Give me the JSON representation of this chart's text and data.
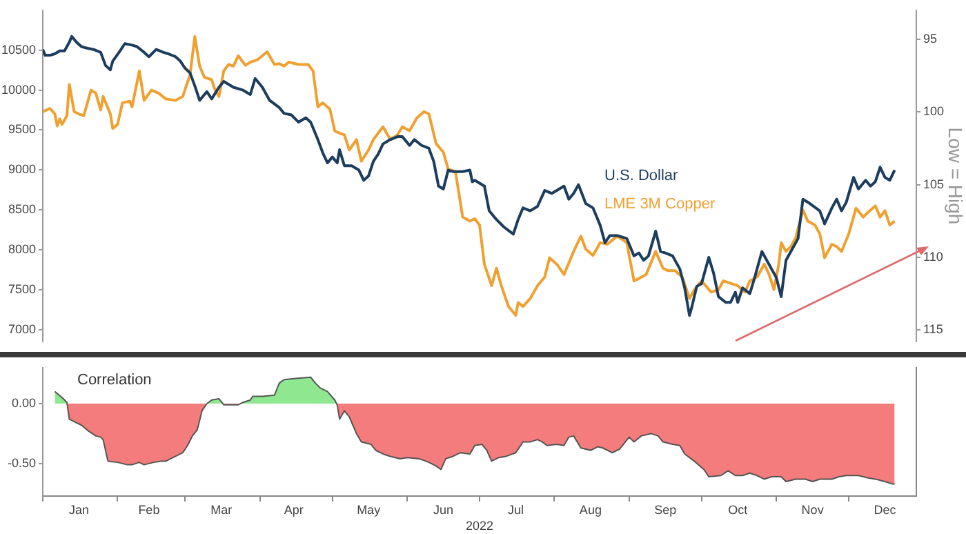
{
  "chart_data": [
    {
      "type": "line",
      "xlim": [
        "2022-01-01",
        "2022-12-29"
      ],
      "ylim": [
        6850,
        11000
      ],
      "yticks": [
        7000,
        7500,
        8000,
        8500,
        9000,
        9500,
        10000,
        10500
      ],
      "y2lim": [
        115.8,
        93
      ],
      "y2ticks": [
        95,
        100,
        105,
        110,
        115
      ],
      "y2label": "Low = High",
      "tick_labels": "y",
      "series": [
        {
          "name": "U.S. Dollar",
          "color": "#1c3d5e",
          "axis": "y2",
          "x": [
            "2022-01-01",
            "2022-01-02",
            "2022-01-04",
            "2022-01-06",
            "2022-01-08",
            "2022-01-10",
            "2022-01-12",
            "2022-01-13",
            "2022-01-15",
            "2022-01-17",
            "2022-01-19",
            "2022-01-22",
            "2022-01-25",
            "2022-01-27",
            "2022-01-29",
            "2022-01-30",
            "2022-02-02",
            "2022-02-04",
            "2022-02-07",
            "2022-02-09",
            "2022-02-12",
            "2022-02-14",
            "2022-02-17",
            "2022-02-20",
            "2022-02-22",
            "2022-02-25",
            "2022-02-27",
            "2022-03-01",
            "2022-03-03",
            "2022-03-05",
            "2022-03-07",
            "2022-03-10",
            "2022-03-12",
            "2022-03-15",
            "2022-03-17",
            "2022-03-21",
            "2022-03-25",
            "2022-03-28",
            "2022-03-30",
            "2022-04-02",
            "2022-04-05",
            "2022-04-09",
            "2022-04-11",
            "2022-04-14",
            "2022-04-17",
            "2022-04-20",
            "2022-04-22",
            "2022-04-25",
            "2022-04-27",
            "2022-04-29",
            "2022-05-01",
            "2022-05-03",
            "2022-05-04",
            "2022-05-06",
            "2022-05-09",
            "2022-05-12",
            "2022-05-14",
            "2022-05-16",
            "2022-05-18",
            "2022-05-20",
            "2022-05-22",
            "2022-05-25",
            "2022-05-28",
            "2022-05-30",
            "2022-06-02",
            "2022-06-04",
            "2022-06-07",
            "2022-06-10",
            "2022-06-12",
            "2022-06-14",
            "2022-06-16",
            "2022-06-18",
            "2022-06-20",
            "2022-06-24",
            "2022-06-27",
            "2022-06-28",
            "2022-06-29",
            "2022-07-03",
            "2022-07-05",
            "2022-07-08",
            "2022-07-11",
            "2022-07-15",
            "2022-07-17",
            "2022-07-19",
            "2022-07-22",
            "2022-07-25",
            "2022-07-28",
            "2022-07-31",
            "2022-08-05",
            "2022-08-07",
            "2022-08-09",
            "2022-08-11",
            "2022-08-14",
            "2022-08-17",
            "2022-08-20",
            "2022-08-22",
            "2022-08-24",
            "2022-08-27",
            "2022-08-31",
            "2022-09-03",
            "2022-09-05",
            "2022-09-07",
            "2022-09-09",
            "2022-09-12",
            "2022-09-14",
            "2022-09-16",
            "2022-09-19",
            "2022-09-22",
            "2022-09-24",
            "2022-09-26",
            "2022-09-27",
            "2022-09-29",
            "2022-10-01",
            "2022-10-04",
            "2022-10-06",
            "2022-10-08",
            "2022-10-11",
            "2022-10-13",
            "2022-10-15",
            "2022-10-16",
            "2022-10-18",
            "2022-10-21",
            "2022-10-23",
            "2022-10-26",
            "2022-10-29",
            "2022-11-01",
            "2022-11-03",
            "2022-11-05",
            "2022-11-08",
            "2022-11-10",
            "2022-11-12",
            "2022-11-14",
            "2022-11-19",
            "2022-11-21",
            "2022-11-24",
            "2022-11-26",
            "2022-11-28",
            "2022-11-30",
            "2022-12-03",
            "2022-12-05",
            "2022-12-08",
            "2022-12-10",
            "2022-12-12",
            "2022-12-14",
            "2022-12-16",
            "2022-12-18",
            "2022-12-20"
          ],
          "values": [
            95.7,
            96.1,
            96.1,
            96.0,
            95.8,
            95.8,
            95.2,
            94.8,
            95.2,
            95.5,
            95.6,
            95.7,
            95.9,
            96.8,
            97.1,
            96.5,
            95.8,
            95.3,
            95.4,
            95.5,
            95.9,
            96.2,
            95.7,
            95.9,
            96.0,
            96.2,
            96.5,
            97.0,
            97.3,
            98.2,
            99.2,
            98.6,
            99.1,
            98.3,
            97.9,
            98.3,
            98.5,
            98.8,
            97.7,
            98.3,
            99.2,
            99.7,
            100.1,
            100.2,
            100.7,
            100.4,
            100.7,
            101.9,
            102.8,
            103.5,
            103.1,
            103.5,
            102.6,
            103.7,
            103.7,
            104.0,
            104.7,
            104.4,
            103.4,
            102.9,
            102.2,
            101.9,
            101.7,
            101.7,
            102.3,
            101.9,
            102.3,
            102.5,
            103.4,
            105.1,
            105.3,
            104.0,
            104.1,
            104.1,
            104.0,
            104.8,
            104.7,
            105.1,
            106.8,
            107.4,
            107.9,
            108.4,
            107.4,
            106.6,
            106.8,
            106.5,
            105.4,
            105.6,
            105.1,
            106.0,
            105.6,
            105.0,
            106.3,
            106.6,
            107.8,
            109.0,
            108.5,
            108.5,
            108.7,
            109.9,
            109.7,
            110.2,
            109.9,
            108.2,
            109.6,
            109.7,
            109.9,
            110.8,
            112.1,
            114.0,
            113.4,
            112.0,
            111.8,
            110.0,
            111.1,
            112.7,
            113.1,
            113.1,
            112.4,
            113.1,
            112.1,
            112.5,
            111.4,
            109.6,
            110.5,
            111.4,
            112.7,
            110.2,
            109.3,
            108.7,
            106.0,
            106.2,
            106.8,
            107.7,
            106.6,
            106.0,
            106.8,
            106.2,
            104.5,
            105.3,
            104.7,
            105.1,
            104.8,
            103.8,
            104.5,
            104.7,
            104.0
          ]
        },
        {
          "name": "LME 3M Copper",
          "color": "#f0a030",
          "x": [
            "2022-01-01",
            "2022-01-04",
            "2022-01-06",
            "2022-01-07",
            "2022-01-08",
            "2022-01-09",
            "2022-01-11",
            "2022-01-12",
            "2022-01-14",
            "2022-01-16",
            "2022-01-18",
            "2022-01-21",
            "2022-01-23",
            "2022-01-25",
            "2022-01-26",
            "2022-01-29",
            "2022-01-30",
            "2022-02-01",
            "2022-02-03",
            "2022-02-06",
            "2022-02-07",
            "2022-02-10",
            "2022-02-12",
            "2022-02-15",
            "2022-02-18",
            "2022-02-21",
            "2022-02-25",
            "2022-02-28",
            "2022-03-03",
            "2022-03-05",
            "2022-03-07",
            "2022-03-09",
            "2022-03-12",
            "2022-03-13",
            "2022-03-15",
            "2022-03-17",
            "2022-03-19",
            "2022-03-21",
            "2022-03-23",
            "2022-03-26",
            "2022-03-28",
            "2022-03-31",
            "2022-04-04",
            "2022-04-07",
            "2022-04-09",
            "2022-04-11",
            "2022-04-13",
            "2022-04-17",
            "2022-04-21",
            "2022-04-23",
            "2022-04-25",
            "2022-04-27",
            "2022-04-30",
            "2022-05-02",
            "2022-05-04",
            "2022-05-06",
            "2022-05-08",
            "2022-05-11",
            "2022-05-13",
            "2022-05-16",
            "2022-05-18",
            "2022-05-20",
            "2022-05-22",
            "2022-05-25",
            "2022-05-28",
            "2022-05-30",
            "2022-06-02",
            "2022-06-05",
            "2022-06-08",
            "2022-06-10",
            "2022-06-13",
            "2022-06-16",
            "2022-06-18",
            "2022-06-21",
            "2022-06-24",
            "2022-06-27",
            "2022-06-29",
            "2022-07-01",
            "2022-07-03",
            "2022-07-06",
            "2022-07-08",
            "2022-07-10",
            "2022-07-13",
            "2022-07-16",
            "2022-07-17",
            "2022-07-19",
            "2022-07-22",
            "2022-07-25",
            "2022-07-28",
            "2022-07-30",
            "2022-08-02",
            "2022-08-05",
            "2022-08-09",
            "2022-08-12",
            "2022-08-14",
            "2022-08-17",
            "2022-08-20",
            "2022-08-23",
            "2022-08-27",
            "2022-08-31",
            "2022-09-03",
            "2022-09-05",
            "2022-09-08",
            "2022-09-12",
            "2022-09-15",
            "2022-09-17",
            "2022-09-20",
            "2022-09-23",
            "2022-09-26",
            "2022-09-28",
            "2022-10-01",
            "2022-10-05",
            "2022-10-08",
            "2022-10-10",
            "2022-10-13",
            "2022-10-16",
            "2022-10-19",
            "2022-10-21",
            "2022-10-24",
            "2022-10-27",
            "2022-10-29",
            "2022-10-31",
            "2022-11-02",
            "2022-11-03",
            "2022-11-05",
            "2022-11-07",
            "2022-11-09",
            "2022-11-12",
            "2022-11-14",
            "2022-11-17",
            "2022-11-19",
            "2022-11-21",
            "2022-11-24",
            "2022-11-26",
            "2022-11-28",
            "2022-12-01",
            "2022-12-04",
            "2022-12-07",
            "2022-12-09",
            "2022-12-12",
            "2022-12-14",
            "2022-12-16",
            "2022-12-18",
            "2022-12-20"
          ],
          "values": [
            9730,
            9770,
            9700,
            9550,
            9640,
            9570,
            9680,
            10070,
            9730,
            9700,
            9680,
            10000,
            9960,
            9750,
            9920,
            9700,
            9520,
            9570,
            9840,
            9860,
            9790,
            10240,
            9870,
            10000,
            9960,
            9890,
            9870,
            9920,
            10190,
            10670,
            10300,
            10160,
            10130,
            10030,
            9920,
            10240,
            10320,
            10300,
            10430,
            10310,
            10350,
            10380,
            10480,
            10320,
            10330,
            10300,
            10350,
            10320,
            10320,
            10240,
            9790,
            9840,
            9760,
            9490,
            9460,
            9440,
            9250,
            9380,
            9110,
            9250,
            9380,
            9460,
            9540,
            9380,
            9440,
            9540,
            9490,
            9650,
            9730,
            9700,
            9330,
            9220,
            9010,
            8980,
            8410,
            8360,
            8390,
            8310,
            7820,
            7550,
            7770,
            7550,
            7290,
            7180,
            7340,
            7290,
            7390,
            7550,
            7660,
            7900,
            7820,
            7690,
            7980,
            8170,
            8010,
            7930,
            8090,
            8070,
            8170,
            8090,
            7610,
            7640,
            7690,
            7980,
            7770,
            7740,
            7740,
            7660,
            7390,
            7500,
            7610,
            7470,
            7500,
            7610,
            7580,
            7550,
            7470,
            7610,
            7660,
            7820,
            7690,
            7500,
            7820,
            8090,
            7980,
            8040,
            8150,
            8500,
            8360,
            8310,
            8200,
            7900,
            8070,
            8040,
            7980,
            8200,
            8520,
            8410,
            8470,
            8550,
            8410,
            8490,
            8310,
            8360
          ]
        }
      ]
    },
    {
      "type": "area",
      "title": "Correlation",
      "xlabel": "2022",
      "color": "#f47c7c",
      "xlim": [
        "2022-01-01",
        "2022-12-29"
      ],
      "xticks": [
        {
          "value": "2022-01-01",
          "label": null
        },
        {
          "value": "2022-01-16",
          "label": "Jan"
        },
        {
          "value": "2022-02-01",
          "label": null
        },
        {
          "value": "2022-02-14",
          "label": "Feb"
        },
        {
          "value": "2022-03-01",
          "label": null
        },
        {
          "value": "2022-03-16",
          "label": "Mar"
        },
        {
          "value": "2022-04-01",
          "label": null
        },
        {
          "value": "2022-04-15",
          "label": "Apr"
        },
        {
          "value": "2022-05-01",
          "label": null
        },
        {
          "value": "2022-05-16",
          "label": "May"
        },
        {
          "value": "2022-06-01",
          "label": null
        },
        {
          "value": "2022-06-16",
          "label": "Jun"
        },
        {
          "value": "2022-07-01",
          "label": null
        },
        {
          "value": "2022-07-16",
          "label": "Jul"
        },
        {
          "value": "2022-08-01",
          "label": null
        },
        {
          "value": "2022-08-16",
          "label": "Aug"
        },
        {
          "value": "2022-09-01",
          "label": null
        },
        {
          "value": "2022-09-16",
          "label": "Sep"
        },
        {
          "value": "2022-10-01",
          "label": null
        },
        {
          "value": "2022-10-16",
          "label": "Oct"
        },
        {
          "value": "2022-11-01",
          "label": null
        },
        {
          "value": "2022-11-16",
          "label": "Nov"
        },
        {
          "value": "2022-12-01",
          "label": null
        },
        {
          "value": "2022-12-16",
          "label": "Dec"
        }
      ],
      "ylim": [
        -0.77,
        0.3
      ],
      "yticks": [
        {
          "value": 0,
          "label": "0.00"
        },
        {
          "value": -0.5,
          "label": "-0.50"
        }
      ],
      "x": [
        "2022-01-06",
        "2022-01-09",
        "2022-01-11",
        "2022-01-12",
        "2022-01-14",
        "2022-01-17",
        "2022-01-20",
        "2022-01-23",
        "2022-01-25",
        "2022-01-26",
        "2022-01-28",
        "2022-02-01",
        "2022-02-05",
        "2022-02-07",
        "2022-02-10",
        "2022-02-12",
        "2022-02-16",
        "2022-02-19",
        "2022-02-21",
        "2022-02-25",
        "2022-02-28",
        "2022-03-02",
        "2022-03-04",
        "2022-03-06",
        "2022-03-08",
        "2022-03-10",
        "2022-03-12",
        "2022-03-15",
        "2022-03-17",
        "2022-03-20",
        "2022-03-23",
        "2022-03-25",
        "2022-03-28",
        "2022-03-29",
        "2022-04-02",
        "2022-04-07",
        "2022-04-09",
        "2022-04-11",
        "2022-04-16",
        "2022-04-22",
        "2022-04-24",
        "2022-04-26",
        "2022-04-29",
        "2022-05-02",
        "2022-05-03",
        "2022-05-04",
        "2022-05-06",
        "2022-05-08",
        "2022-05-11",
        "2022-05-13",
        "2022-05-17",
        "2022-05-19",
        "2022-05-22",
        "2022-05-25",
        "2022-05-29",
        "2022-06-01",
        "2022-06-06",
        "2022-06-10",
        "2022-06-13",
        "2022-06-15",
        "2022-06-17",
        "2022-06-20",
        "2022-06-23",
        "2022-06-27",
        "2022-06-29",
        "2022-07-02",
        "2022-07-04",
        "2022-07-06",
        "2022-07-09",
        "2022-07-12",
        "2022-07-16",
        "2022-07-19",
        "2022-07-22",
        "2022-07-25",
        "2022-07-27",
        "2022-07-29",
        "2022-08-02",
        "2022-08-05",
        "2022-08-07",
        "2022-08-09",
        "2022-08-12",
        "2022-08-16",
        "2022-08-19",
        "2022-08-21",
        "2022-08-25",
        "2022-08-28",
        "2022-09-01",
        "2022-09-03",
        "2022-09-06",
        "2022-09-10",
        "2022-09-13",
        "2022-09-15",
        "2022-09-19",
        "2022-09-22",
        "2022-09-24",
        "2022-09-28",
        "2022-10-02",
        "2022-10-04",
        "2022-10-09",
        "2022-10-12",
        "2022-10-15",
        "2022-10-18",
        "2022-10-21",
        "2022-10-24",
        "2022-10-27",
        "2022-10-30",
        "2022-11-03",
        "2022-11-05",
        "2022-11-09",
        "2022-11-13",
        "2022-11-16",
        "2022-11-19",
        "2022-11-24",
        "2022-11-27",
        "2022-11-30",
        "2022-12-03",
        "2022-12-05",
        "2022-12-09",
        "2022-12-12",
        "2022-12-16",
        "2022-12-19",
        "2022-12-20"
      ],
      "values": [
        0.1,
        0.05,
        0.01,
        -0.13,
        -0.15,
        -0.18,
        -0.23,
        -0.27,
        -0.28,
        -0.3,
        -0.48,
        -0.49,
        -0.51,
        -0.51,
        -0.49,
        -0.51,
        -0.49,
        -0.48,
        -0.48,
        -0.44,
        -0.41,
        -0.35,
        -0.27,
        -0.22,
        -0.06,
        0.0,
        0.03,
        0.04,
        -0.01,
        -0.01,
        -0.01,
        0.01,
        0.03,
        0.06,
        0.06,
        0.07,
        0.17,
        0.2,
        0.21,
        0.22,
        0.17,
        0.13,
        0.1,
        0.03,
        -0.01,
        -0.13,
        -0.06,
        -0.11,
        -0.25,
        -0.32,
        -0.34,
        -0.39,
        -0.42,
        -0.44,
        -0.46,
        -0.45,
        -0.46,
        -0.49,
        -0.52,
        -0.55,
        -0.46,
        -0.44,
        -0.41,
        -0.42,
        -0.35,
        -0.34,
        -0.39,
        -0.48,
        -0.45,
        -0.44,
        -0.41,
        -0.32,
        -0.32,
        -0.3,
        -0.32,
        -0.35,
        -0.34,
        -0.35,
        -0.28,
        -0.27,
        -0.37,
        -0.39,
        -0.36,
        -0.37,
        -0.41,
        -0.38,
        -0.28,
        -0.32,
        -0.27,
        -0.25,
        -0.27,
        -0.32,
        -0.34,
        -0.35,
        -0.42,
        -0.48,
        -0.55,
        -0.61,
        -0.6,
        -0.56,
        -0.6,
        -0.6,
        -0.58,
        -0.6,
        -0.63,
        -0.61,
        -0.61,
        -0.65,
        -0.63,
        -0.63,
        -0.65,
        -0.63,
        -0.63,
        -0.61,
        -0.6,
        -0.6,
        -0.6,
        -0.62,
        -0.63,
        -0.65,
        -0.67,
        -0.67
      ]
    }
  ]
}
